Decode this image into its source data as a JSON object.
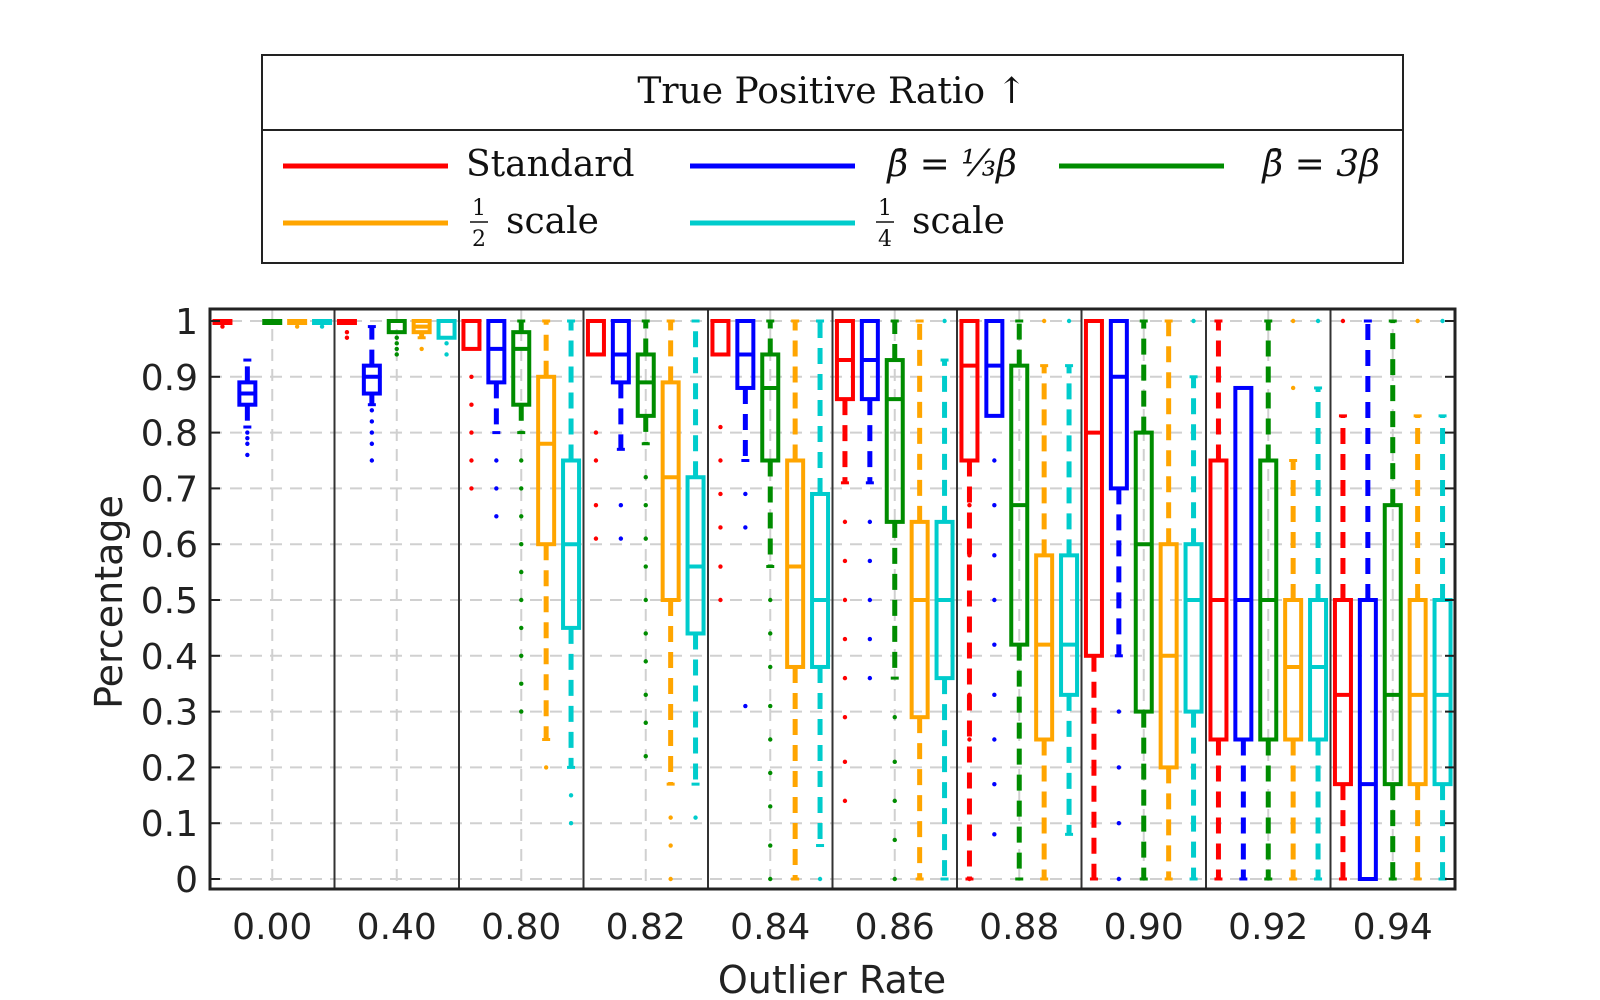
{
  "chart_data": {
    "type": "boxplot",
    "title": "True Positive Ratio ↑",
    "xlabel": "Outlier Rate",
    "ylabel": "Percentage",
    "ylim": [
      0,
      1
    ],
    "yticks": [
      "0",
      "0.1",
      "0.2",
      "0.3",
      "0.4",
      "0.5",
      "0.6",
      "0.7",
      "0.8",
      "0.9",
      "1"
    ],
    "grid": true,
    "legend_placement": "top",
    "categories": [
      "0.00",
      "0.40",
      "0.80",
      "0.82",
      "0.84",
      "0.86",
      "0.88",
      "0.90",
      "0.92",
      "0.94"
    ],
    "series": [
      {
        "name": "Standard",
        "color": "#ff0000",
        "boxes": [
          {
            "min": 1.0,
            "q1": 1.0,
            "median": 1.0,
            "q3": 1.0,
            "max": 1.0,
            "outliers": [
              0.995,
              0.99
            ]
          },
          {
            "min": 1.0,
            "q1": 1.0,
            "median": 1.0,
            "q3": 1.0,
            "max": 1.0,
            "outliers": [
              0.98,
              0.97
            ]
          },
          {
            "min": 0.95,
            "q1": 0.95,
            "median": 1.0,
            "q3": 1.0,
            "max": 1.0,
            "outliers": [
              0.9,
              0.85,
              0.8,
              0.75,
              0.7
            ]
          },
          {
            "min": 0.94,
            "q1": 0.94,
            "median": 1.0,
            "q3": 1.0,
            "max": 1.0,
            "outliers": [
              0.8,
              0.75,
              0.67,
              0.61
            ]
          },
          {
            "min": 0.94,
            "q1": 0.94,
            "median": 1.0,
            "q3": 1.0,
            "max": 1.0,
            "outliers": [
              0.81,
              0.75,
              0.69,
              0.63,
              0.56,
              0.5
            ]
          },
          {
            "min": 0.71,
            "q1": 0.86,
            "median": 0.93,
            "q3": 1.0,
            "max": 1.0,
            "outliers": [
              0.64,
              0.57,
              0.5,
              0.43,
              0.36,
              0.29,
              0.21,
              0.14
            ]
          },
          {
            "min": 0.0,
            "q1": 0.75,
            "median": 0.92,
            "q3": 1.0,
            "max": 1.0,
            "outliers": [
              0.67,
              0.58,
              0.5,
              0.42,
              0.33,
              0.25,
              0.17,
              0.08,
              0.0
            ]
          },
          {
            "min": 0.0,
            "q1": 0.4,
            "median": 0.8,
            "q3": 1.0,
            "max": 1.0,
            "outliers": []
          },
          {
            "min": 0.0,
            "q1": 0.25,
            "median": 0.5,
            "q3": 0.75,
            "max": 1.0,
            "outliers": []
          },
          {
            "min": 0.0,
            "q1": 0.17,
            "median": 0.33,
            "q3": 0.5,
            "max": 0.83,
            "outliers": [
              1.0
            ]
          }
        ]
      },
      {
        "name": "β̄ = ⅓β",
        "color": "#0000ff",
        "boxes": [
          {
            "min": 0.81,
            "q1": 0.85,
            "median": 0.87,
            "q3": 0.89,
            "max": 0.93,
            "outliers": [
              0.8,
              0.79,
              0.78,
              0.76
            ]
          },
          {
            "min": 0.85,
            "q1": 0.87,
            "median": 0.9,
            "q3": 0.92,
            "max": 0.99,
            "outliers": [
              0.84,
              0.82,
              0.8,
              0.78,
              0.75
            ]
          },
          {
            "min": 0.8,
            "q1": 0.89,
            "median": 0.95,
            "q3": 1.0,
            "max": 1.0,
            "outliers": [
              0.75,
              0.7,
              0.65
            ]
          },
          {
            "min": 0.77,
            "q1": 0.89,
            "median": 0.94,
            "q3": 1.0,
            "max": 1.0,
            "outliers": [
              0.67,
              0.61
            ]
          },
          {
            "min": 0.75,
            "q1": 0.88,
            "median": 0.94,
            "q3": 1.0,
            "max": 1.0,
            "outliers": [
              0.69,
              0.63,
              0.31
            ]
          },
          {
            "min": 0.71,
            "q1": 0.86,
            "median": 0.93,
            "q3": 1.0,
            "max": 1.0,
            "outliers": [
              0.64,
              0.57,
              0.5,
              0.43,
              0.36
            ]
          },
          {
            "min": 0.83,
            "q1": 0.83,
            "median": 0.92,
            "q3": 1.0,
            "max": 1.0,
            "outliers": [
              0.75,
              0.67,
              0.58,
              0.5,
              0.42,
              0.33,
              0.25,
              0.17,
              0.08
            ]
          },
          {
            "min": 0.4,
            "q1": 0.7,
            "median": 0.9,
            "q3": 1.0,
            "max": 1.0,
            "outliers": [
              0.3,
              0.2,
              0.1,
              0.0
            ]
          },
          {
            "min": 0.0,
            "q1": 0.25,
            "median": 0.5,
            "q3": 0.88,
            "max": 0.88,
            "outliers": []
          },
          {
            "min": 0.0,
            "q1": 0.0,
            "median": 0.17,
            "q3": 0.5,
            "max": 1.0,
            "outliers": []
          }
        ]
      },
      {
        "name": "β̄ = 3β",
        "color": "#008c00",
        "boxes": [
          {
            "min": 1.0,
            "q1": 1.0,
            "median": 1.0,
            "q3": 1.0,
            "max": 1.0,
            "outliers": []
          },
          {
            "min": 0.98,
            "q1": 0.98,
            "median": 1.0,
            "q3": 1.0,
            "max": 1.0,
            "outliers": [
              0.97,
              0.96,
              0.95,
              0.94
            ]
          },
          {
            "min": 0.8,
            "q1": 0.85,
            "median": 0.95,
            "q3": 0.98,
            "max": 1.0,
            "outliers": [
              0.75,
              0.7,
              0.65,
              0.6,
              0.55,
              0.5,
              0.45,
              0.4,
              0.35,
              0.3
            ]
          },
          {
            "min": 0.78,
            "q1": 0.83,
            "median": 0.89,
            "q3": 0.94,
            "max": 1.0,
            "outliers": [
              0.72,
              0.67,
              0.61,
              0.56,
              0.5,
              0.44,
              0.39,
              0.33,
              0.28,
              0.22
            ]
          },
          {
            "min": 0.56,
            "q1": 0.75,
            "median": 0.88,
            "q3": 0.94,
            "max": 1.0,
            "outliers": [
              0.5,
              0.44,
              0.38,
              0.31,
              0.25,
              0.19,
              0.13,
              0.06,
              0.0
            ]
          },
          {
            "min": 0.36,
            "q1": 0.64,
            "median": 0.86,
            "q3": 0.93,
            "max": 1.0,
            "outliers": [
              0.29,
              0.21,
              0.14,
              0.07,
              0.0
            ]
          },
          {
            "min": 0.0,
            "q1": 0.42,
            "median": 0.67,
            "q3": 0.92,
            "max": 1.0,
            "outliers": []
          },
          {
            "min": 0.0,
            "q1": 0.3,
            "median": 0.6,
            "q3": 0.8,
            "max": 1.0,
            "outliers": []
          },
          {
            "min": 0.0,
            "q1": 0.25,
            "median": 0.5,
            "q3": 0.75,
            "max": 1.0,
            "outliers": []
          },
          {
            "min": 0.0,
            "q1": 0.17,
            "median": 0.33,
            "q3": 0.67,
            "max": 1.0,
            "outliers": []
          }
        ]
      },
      {
        "name": "½ scale",
        "color": "#ffa500",
        "boxes": [
          {
            "min": 1.0,
            "q1": 1.0,
            "median": 1.0,
            "q3": 1.0,
            "max": 1.0,
            "outliers": [
              0.99
            ]
          },
          {
            "min": 0.97,
            "q1": 0.98,
            "median": 0.99,
            "q3": 1.0,
            "max": 1.0,
            "outliers": [
              0.95
            ]
          },
          {
            "min": 0.25,
            "q1": 0.6,
            "median": 0.78,
            "q3": 0.9,
            "max": 1.0,
            "outliers": [
              0.2
            ]
          },
          {
            "min": 0.17,
            "q1": 0.5,
            "median": 0.72,
            "q3": 0.89,
            "max": 1.0,
            "outliers": [
              0.11,
              0.06,
              0.0
            ]
          },
          {
            "min": 0.0,
            "q1": 0.38,
            "median": 0.56,
            "q3": 0.75,
            "max": 1.0,
            "outliers": []
          },
          {
            "min": 0.0,
            "q1": 0.29,
            "median": 0.5,
            "q3": 0.64,
            "max": 1.0,
            "outliers": []
          },
          {
            "min": 0.0,
            "q1": 0.25,
            "median": 0.42,
            "q3": 0.58,
            "max": 0.92,
            "outliers": [
              1.0
            ]
          },
          {
            "min": 0.0,
            "q1": 0.2,
            "median": 0.4,
            "q3": 0.6,
            "max": 1.0,
            "outliers": []
          },
          {
            "min": 0.0,
            "q1": 0.25,
            "median": 0.38,
            "q3": 0.5,
            "max": 0.75,
            "outliers": [
              0.88,
              1.0
            ]
          },
          {
            "min": 0.0,
            "q1": 0.17,
            "median": 0.33,
            "q3": 0.5,
            "max": 0.83,
            "outliers": [
              1.0
            ]
          }
        ]
      },
      {
        "name": "¼ scale",
        "color": "#00cccc",
        "boxes": [
          {
            "min": 1.0,
            "q1": 1.0,
            "median": 1.0,
            "q3": 1.0,
            "max": 1.0,
            "outliers": [
              0.99
            ]
          },
          {
            "min": 0.97,
            "q1": 0.97,
            "median": 1.0,
            "q3": 1.0,
            "max": 1.0,
            "outliers": [
              0.96,
              0.94
            ]
          },
          {
            "min": 0.2,
            "q1": 0.45,
            "median": 0.6,
            "q3": 0.75,
            "max": 1.0,
            "outliers": [
              0.15,
              0.1
            ]
          },
          {
            "min": 0.17,
            "q1": 0.44,
            "median": 0.56,
            "q3": 0.72,
            "max": 1.0,
            "outliers": [
              0.11
            ]
          },
          {
            "min": 0.06,
            "q1": 0.38,
            "median": 0.5,
            "q3": 0.69,
            "max": 1.0,
            "outliers": [
              0.0
            ]
          },
          {
            "min": 0.0,
            "q1": 0.36,
            "median": 0.5,
            "q3": 0.64,
            "max": 0.93,
            "outliers": [
              1.0
            ]
          },
          {
            "min": 0.08,
            "q1": 0.33,
            "median": 0.42,
            "q3": 0.58,
            "max": 0.92,
            "outliers": [
              1.0
            ]
          },
          {
            "min": 0.0,
            "q1": 0.3,
            "median": 0.5,
            "q3": 0.6,
            "max": 0.9,
            "outliers": [
              1.0
            ]
          },
          {
            "min": 0.0,
            "q1": 0.25,
            "median": 0.38,
            "q3": 0.5,
            "max": 0.88,
            "outliers": [
              1.0
            ]
          },
          {
            "min": 0.0,
            "q1": 0.17,
            "median": 0.33,
            "q3": 0.5,
            "max": 0.83,
            "outliers": [
              1.0
            ]
          }
        ]
      }
    ]
  },
  "legend": {
    "title": "True Positive Ratio ↑",
    "entries": [
      {
        "label": "Standard",
        "color": "#ff0000",
        "kind": "text"
      },
      {
        "label": "β̄ = ⅓β",
        "color": "#0000ff",
        "kind": "beta-third"
      },
      {
        "label": "β̄ = 3β",
        "color": "#008c00",
        "kind": "beta-three"
      },
      {
        "label": "½ scale",
        "color": "#ffa500",
        "kind": "frac",
        "num": "1",
        "den": "2",
        "word": "scale"
      },
      {
        "label": "¼ scale",
        "color": "#00cccc",
        "kind": "frac",
        "num": "1",
        "den": "4",
        "word": "scale"
      }
    ]
  }
}
